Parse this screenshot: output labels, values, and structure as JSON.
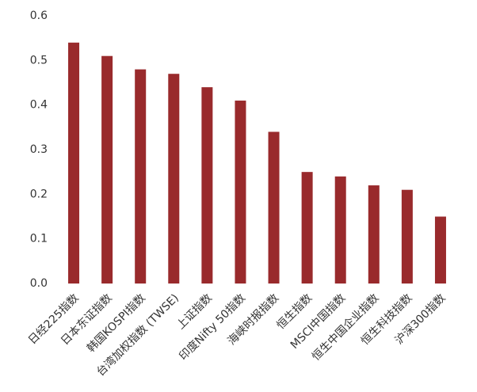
{
  "chart_data": {
    "type": "bar",
    "categories": [
      "日经225指数",
      "日本东证指数",
      "韩国KOSPI指数",
      "台湾加权指数 (TWSE)",
      "上证指数",
      "印度Nifty 50指数",
      "海峡时报指数",
      "恒生指数",
      "MSCI中国指数",
      "恒生中国企业指数",
      "恒生科技指数",
      "沪深300指数"
    ],
    "values": [
      0.54,
      0.51,
      0.48,
      0.47,
      0.44,
      0.41,
      0.34,
      0.25,
      0.24,
      0.22,
      0.21,
      0.15
    ],
    "color": "#992a2c",
    "ylim": [
      0,
      0.6
    ],
    "yticks": [
      {
        "value": 0,
        "label": "0.0"
      },
      0.1,
      0.2,
      0.3,
      0.4,
      0.5,
      0.6
    ],
    "grid": false
  }
}
